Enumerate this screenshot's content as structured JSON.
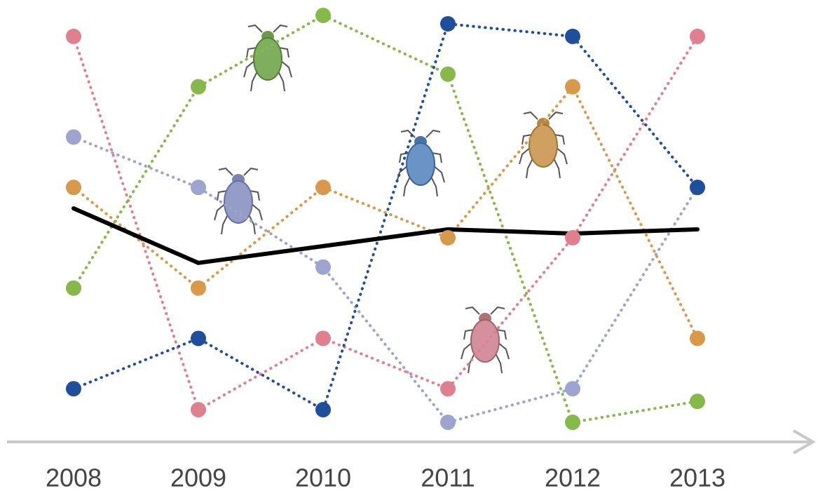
{
  "chart_data": {
    "type": "line",
    "categories": [
      "2008",
      "2009",
      "2010",
      "2011",
      "2012",
      "2013"
    ],
    "ylim": [
      0,
      100
    ],
    "series": [
      {
        "color": "#e0808f",
        "line_style": "dotted",
        "markers": true,
        "values": [
          95,
          6,
          23,
          11,
          47,
          95
        ]
      },
      {
        "color": "#9ea3cf",
        "line_style": "dotted",
        "markers": true,
        "values": [
          71,
          59,
          40,
          3,
          11,
          59
        ]
      },
      {
        "color": "#d9994a",
        "line_style": "dotted",
        "markers": true,
        "values": [
          59,
          35,
          59,
          47,
          83,
          23
        ]
      },
      {
        "color": "#86b84a",
        "line_style": "dotted",
        "markers": true,
        "values": [
          35,
          83,
          100,
          86,
          3,
          8
        ]
      },
      {
        "color": "#1f4e9a",
        "line_style": "dotted",
        "markers": true,
        "values": [
          11,
          23,
          6,
          98,
          95,
          59
        ]
      },
      {
        "color": "#000000",
        "line_style": "solid",
        "markers": false,
        "values": [
          54,
          41,
          45,
          49,
          48,
          49
        ]
      }
    ]
  }
}
